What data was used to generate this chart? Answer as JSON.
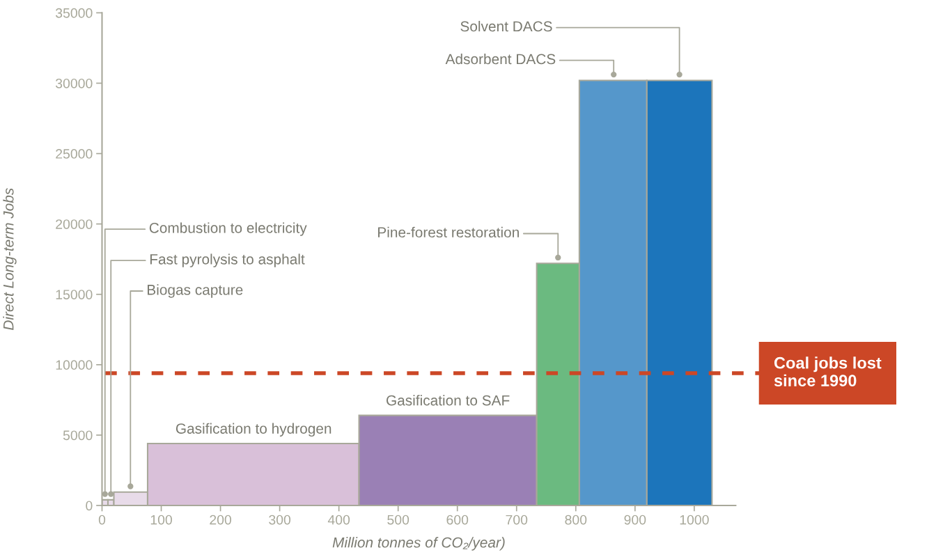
{
  "chart_data": {
    "type": "histogram",
    "xlabel": "Million tonnes of CO₂/year)",
    "ylabel": "Direct Long-term Jobs",
    "bins": [
      0,
      10,
      20,
      77,
      434,
      734,
      806,
      920,
      1030
    ],
    "values": [
      400,
      400,
      950,
      4400,
      6400,
      17200,
      30200,
      30200
    ],
    "colors": [
      "#e8dbe9",
      "#e8dbe9",
      "#e8dbe9",
      "#d9c0d9",
      "#9a80b5",
      "#6bba80",
      "#5597cb",
      "#1c75bb"
    ],
    "xlim": [
      0,
      1070
    ],
    "xticks": [
      0,
      100,
      200,
      300,
      400,
      500,
      600,
      700,
      800,
      900,
      1000
    ],
    "ylim": [
      0,
      35000
    ],
    "yticks": [
      0,
      5000,
      10000,
      15000,
      20000,
      25000,
      30000,
      35000
    ],
    "grid": false,
    "annotations": [
      {
        "text": "Combustion to electricity",
        "x": 5,
        "y": 400
      },
      {
        "text": "Fast pyrolysis to asphalt",
        "x": 15,
        "y": 400
      },
      {
        "text": "Biogas capture",
        "x": 48,
        "y": 950
      },
      {
        "text": "Gasification to hydrogen",
        "x": 256,
        "y": 4400
      },
      {
        "text": "Gasification to SAF",
        "x": 584,
        "y": 6400
      },
      {
        "text": "Pine-forest restoration",
        "x": 770,
        "y": 17200
      },
      {
        "text": "Adsorbent DACS",
        "x": 864,
        "y": 30200
      },
      {
        "text": "Solvent DACS",
        "x": 975,
        "y": 30200
      }
    ],
    "ref_lines": [
      {
        "axis": "y",
        "value": 9400,
        "label": "Coal jobs lost since 1990",
        "color": "#cc4726",
        "line_style": "dashed"
      }
    ]
  }
}
